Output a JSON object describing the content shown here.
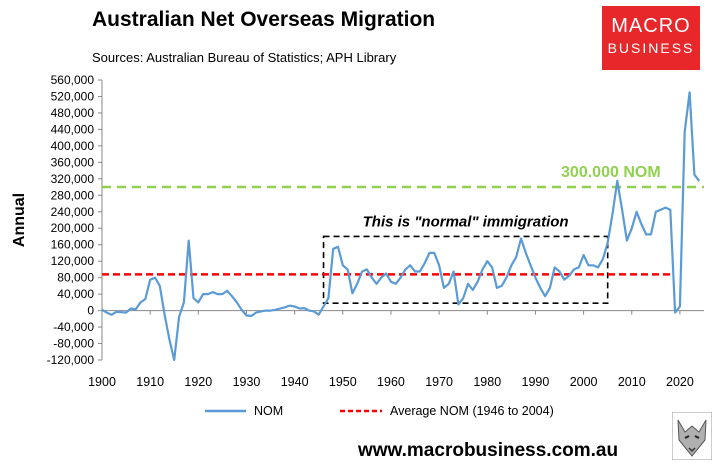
{
  "header": {
    "title": "Australian Net Overseas Migration",
    "subtitle": "Sources: Australian Bureau of Statistics; APH Library"
  },
  "logo": {
    "line1": "MACRO",
    "line2": "BUSINESS"
  },
  "footer": {
    "website": "www.macrobusiness.com.au"
  },
  "colors": {
    "nom": "#5b9bd5",
    "average": "#ff0000",
    "target": "#92d050",
    "logo_bg": "#e8272a"
  },
  "chart_data": {
    "type": "line",
    "ylabel": "Annual",
    "xlabel": "",
    "xlim": [
      1900,
      2025
    ],
    "ylim": [
      -120000,
      560000
    ],
    "x_ticks": [
      1900,
      1910,
      1920,
      1930,
      1940,
      1950,
      1960,
      1970,
      1980,
      1990,
      2000,
      2010,
      2020
    ],
    "y_ticks": [
      -120000,
      -80000,
      -40000,
      0,
      40000,
      80000,
      120000,
      160000,
      200000,
      240000,
      280000,
      320000,
      360000,
      400000,
      440000,
      480000,
      520000,
      560000
    ],
    "y_tick_labels": [
      "-120,000",
      "-80,000",
      "-40,000",
      "0",
      "40,000",
      "80,000",
      "120,000",
      "160,000",
      "200,000",
      "240,000",
      "280,000",
      "320,000",
      "360,000",
      "400,000",
      "440,000",
      "480,000",
      "520,000",
      "560,000"
    ],
    "grid": false,
    "legend_position": "bottom",
    "series": [
      {
        "name": "NOM",
        "color": "#5b9bd5",
        "x": [
          1900,
          1901,
          1902,
          1903,
          1904,
          1905,
          1906,
          1907,
          1908,
          1909,
          1910,
          1911,
          1912,
          1913,
          1914,
          1915,
          1916,
          1917,
          1918,
          1919,
          1920,
          1921,
          1922,
          1923,
          1924,
          1925,
          1926,
          1927,
          1928,
          1929,
          1930,
          1931,
          1932,
          1933,
          1934,
          1935,
          1936,
          1937,
          1938,
          1939,
          1940,
          1941,
          1942,
          1943,
          1944,
          1945,
          1946,
          1947,
          1948,
          1949,
          1950,
          1951,
          1952,
          1953,
          1954,
          1955,
          1956,
          1957,
          1958,
          1959,
          1960,
          1961,
          1962,
          1963,
          1964,
          1965,
          1966,
          1967,
          1968,
          1969,
          1970,
          1971,
          1972,
          1973,
          1974,
          1975,
          1976,
          1977,
          1978,
          1979,
          1980,
          1981,
          1982,
          1983,
          1984,
          1985,
          1986,
          1987,
          1988,
          1989,
          1990,
          1991,
          1992,
          1993,
          1994,
          1995,
          1996,
          1997,
          1998,
          1999,
          2000,
          2001,
          2002,
          2003,
          2004,
          2005,
          2006,
          2007,
          2008,
          2009,
          2010,
          2011,
          2012,
          2013,
          2014,
          2015,
          2016,
          2017,
          2018,
          2019,
          2020,
          2021,
          2022,
          2023,
          2024
        ],
        "values": [
          2000,
          -5000,
          -10000,
          -3000,
          -4000,
          -5000,
          5000,
          3000,
          20000,
          28000,
          75000,
          80000,
          60000,
          -10000,
          -70000,
          -120000,
          -15000,
          20000,
          170000,
          30000,
          20000,
          40000,
          40000,
          45000,
          40000,
          40000,
          48000,
          35000,
          20000,
          2000,
          -12000,
          -13000,
          -5000,
          -2000,
          0,
          0,
          2000,
          5000,
          8000,
          12000,
          10000,
          5000,
          6000,
          0,
          -2000,
          -10000,
          10000,
          30000,
          150000,
          155000,
          110000,
          100000,
          42000,
          65000,
          95000,
          100000,
          80000,
          65000,
          80000,
          90000,
          70000,
          65000,
          80000,
          100000,
          110000,
          95000,
          95000,
          115000,
          140000,
          140000,
          110000,
          55000,
          65000,
          95000,
          15000,
          30000,
          65000,
          50000,
          70000,
          100000,
          120000,
          105000,
          55000,
          60000,
          80000,
          110000,
          130000,
          175000,
          140000,
          110000,
          80000,
          55000,
          35000,
          55000,
          105000,
          95000,
          75000,
          85000,
          100000,
          105000,
          135000,
          110000,
          110000,
          105000,
          125000,
          165000,
          235000,
          315000,
          245000,
          170000,
          200000,
          240000,
          210000,
          185000,
          185000,
          240000,
          245000,
          250000,
          245000,
          -5000,
          10000,
          435000,
          530000,
          330000,
          315000
        ]
      },
      {
        "name": "Average NOM (1946 to 2004)",
        "color": "#ff0000",
        "style": "dashed",
        "x": [
          1900,
          2024
        ],
        "values": [
          88000,
          88000
        ]
      }
    ],
    "reference_lines": [
      {
        "label": "300.000 NOM",
        "value": 300000,
        "color": "#92d050",
        "style": "dashed"
      }
    ],
    "annotations": [
      {
        "text": "This is \"normal\" immigration",
        "box_x": [
          1946,
          2005
        ],
        "box_y": [
          18000,
          180000
        ]
      }
    ]
  }
}
